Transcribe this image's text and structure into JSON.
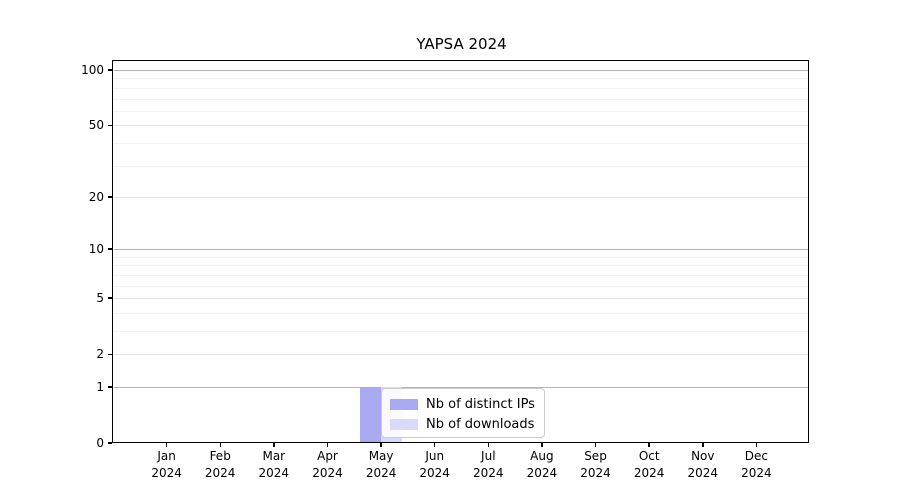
{
  "title": "YAPSA 2024",
  "colors": {
    "distinct_ips": "#aaaaf2",
    "downloads": "#d9d9f8",
    "grid_major_dark": "#b4b4b4",
    "grid_major_light": "#e4e4e4",
    "grid_minor": "#f3f3f3",
    "axis": "#000000",
    "legend_border": "#cccccc"
  },
  "legend": {
    "items": [
      {
        "label": "Nb of distinct IPs",
        "color_key": "distinct_ips"
      },
      {
        "label": "Nb of downloads",
        "color_key": "downloads"
      }
    ]
  },
  "chart_data": {
    "type": "bar",
    "title": "YAPSA 2024",
    "categories": [
      "Jan 2024",
      "Feb 2024",
      "Mar 2024",
      "Apr 2024",
      "May 2024",
      "Jun 2024",
      "Jul 2024",
      "Aug 2024",
      "Sep 2024",
      "Oct 2024",
      "Nov 2024",
      "Dec 2024"
    ],
    "series": [
      {
        "name": "Nb of distinct IPs",
        "color": "#aaaaf2",
        "values": [
          0,
          0,
          0,
          0,
          1,
          0,
          0,
          0,
          0,
          0,
          0,
          0
        ]
      },
      {
        "name": "Nb of downloads",
        "color": "#d9d9f8",
        "values": [
          0,
          0,
          0,
          0,
          1,
          0,
          0,
          0,
          0,
          0,
          0,
          0
        ]
      }
    ],
    "xlabel": "",
    "ylabel": "",
    "ylim": [
      0,
      100
    ],
    "yscale": "log1p",
    "yticks": [
      0,
      1,
      2,
      5,
      10,
      20,
      50,
      100
    ],
    "yticks_emphasized": [
      1,
      10,
      100
    ],
    "yticks_minor": [
      3,
      4,
      6,
      7,
      8,
      9,
      30,
      40,
      60,
      70,
      80,
      90
    ],
    "grid": true,
    "legend_position": "lower center inside"
  }
}
